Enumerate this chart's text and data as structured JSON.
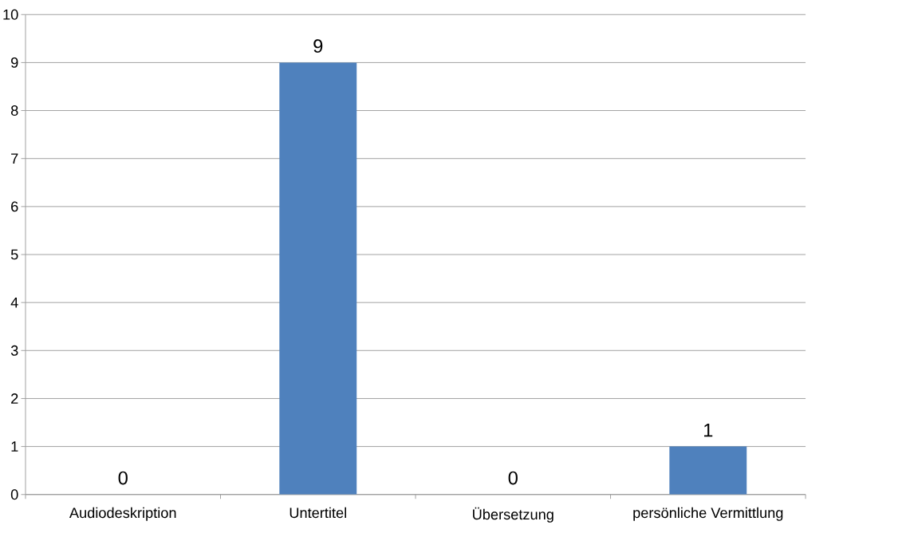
{
  "chart_data": {
    "type": "bar",
    "categories": [
      "Audiodeskription",
      "Untertitel",
      "Übersetzung",
      "persönliche Vermittlung"
    ],
    "values": [
      0,
      9,
      0,
      1
    ],
    "color": "#4f81bd",
    "ylim": [
      0,
      10
    ],
    "yticks": [
      0,
      1,
      2,
      3,
      4,
      5,
      6,
      7,
      8,
      9,
      10
    ],
    "grid": "y",
    "data_labels": true
  }
}
